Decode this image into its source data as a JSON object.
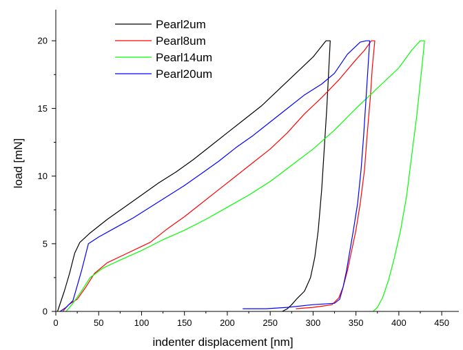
{
  "chart_data": {
    "type": "line",
    "title": "",
    "xlabel": "indenter displacement [nm]",
    "ylabel": "load [mN]",
    "xlim": [
      0,
      470
    ],
    "ylim": [
      0,
      22.3
    ],
    "xticks": [
      0,
      50,
      100,
      150,
      200,
      250,
      300,
      350,
      400,
      450
    ],
    "yticks": [
      0,
      5,
      10,
      15,
      20
    ],
    "grid": false,
    "legend_position": "top-left",
    "series": [
      {
        "name": "Pearl2um",
        "color": "#000000",
        "points": [
          [
            2,
            0
          ],
          [
            10,
            1.5
          ],
          [
            16,
            2.8
          ],
          [
            22,
            4.3
          ],
          [
            28,
            5.1
          ],
          [
            40,
            5.8
          ],
          [
            60,
            6.8
          ],
          [
            80,
            7.7
          ],
          [
            100,
            8.6
          ],
          [
            120,
            9.5
          ],
          [
            140,
            10.3
          ],
          [
            160,
            11.2
          ],
          [
            180,
            12.2
          ],
          [
            200,
            13.2
          ],
          [
            220,
            14.2
          ],
          [
            240,
            15.2
          ],
          [
            260,
            16.4
          ],
          [
            280,
            17.6
          ],
          [
            300,
            18.8
          ],
          [
            310,
            19.6
          ],
          [
            315,
            20.0
          ],
          [
            320,
            20.0
          ],
          [
            318,
            17.5
          ],
          [
            316,
            15.0
          ],
          [
            313,
            12.0
          ],
          [
            310,
            9.0
          ],
          [
            306,
            6.0
          ],
          [
            302,
            4.0
          ],
          [
            297,
            2.5
          ],
          [
            290,
            1.5
          ],
          [
            282,
            1.0
          ],
          [
            275,
            0.5
          ],
          [
            270,
            0.2
          ],
          [
            264,
            0
          ]
        ]
      },
      {
        "name": "Pearl8um",
        "color": "#ff0000",
        "points": [
          [
            8,
            0
          ],
          [
            15,
            0.5
          ],
          [
            25,
            0.9
          ],
          [
            35,
            1.8
          ],
          [
            45,
            2.8
          ],
          [
            60,
            3.6
          ],
          [
            80,
            4.2
          ],
          [
            100,
            4.8
          ],
          [
            110,
            5.1
          ],
          [
            130,
            6.1
          ],
          [
            150,
            7.0
          ],
          [
            170,
            8.0
          ],
          [
            190,
            9.0
          ],
          [
            210,
            10.0
          ],
          [
            230,
            11.0
          ],
          [
            250,
            12.0
          ],
          [
            270,
            13.2
          ],
          [
            290,
            14.6
          ],
          [
            310,
            15.8
          ],
          [
            330,
            17.1
          ],
          [
            350,
            18.6
          ],
          [
            360,
            19.3
          ],
          [
            368,
            20.0
          ],
          [
            372,
            20.0
          ],
          [
            369,
            18.0
          ],
          [
            367,
            16.0
          ],
          [
            363,
            13.0
          ],
          [
            360,
            10.5
          ],
          [
            355,
            8.0
          ],
          [
            350,
            6.0
          ],
          [
            345,
            4.5
          ],
          [
            340,
            3.0
          ],
          [
            335,
            1.8
          ],
          [
            330,
            1.0
          ],
          [
            322,
            0.5
          ],
          [
            312,
            0.4
          ],
          [
            300,
            0.3
          ],
          [
            280,
            0.2
          ]
        ]
      },
      {
        "name": "Pearl14um",
        "color": "#00ff00",
        "points": [
          [
            12,
            0
          ],
          [
            20,
            0.6
          ],
          [
            30,
            1.5
          ],
          [
            40,
            2.5
          ],
          [
            55,
            3.2
          ],
          [
            75,
            3.8
          ],
          [
            100,
            4.5
          ],
          [
            125,
            5.3
          ],
          [
            150,
            6.0
          ],
          [
            175,
            6.8
          ],
          [
            200,
            7.7
          ],
          [
            225,
            8.6
          ],
          [
            250,
            9.6
          ],
          [
            275,
            10.8
          ],
          [
            300,
            12.0
          ],
          [
            325,
            13.4
          ],
          [
            350,
            15.0
          ],
          [
            375,
            16.5
          ],
          [
            400,
            18.0
          ],
          [
            415,
            19.3
          ],
          [
            425,
            20.0
          ],
          [
            430,
            20.0
          ],
          [
            426,
            17.5
          ],
          [
            421,
            14.5
          ],
          [
            415,
            11.5
          ],
          [
            409,
            8.5
          ],
          [
            402,
            6.0
          ],
          [
            395,
            4.0
          ],
          [
            388,
            2.3
          ],
          [
            381,
            1.0
          ],
          [
            375,
            0.3
          ],
          [
            370,
            0
          ]
        ]
      },
      {
        "name": "Pearl20um",
        "color": "#0000ff",
        "points": [
          [
            5,
            0
          ],
          [
            12,
            0.3
          ],
          [
            20,
            0.8
          ],
          [
            30,
            3.0
          ],
          [
            38,
            5.0
          ],
          [
            50,
            5.5
          ],
          [
            70,
            6.2
          ],
          [
            90,
            6.9
          ],
          [
            110,
            7.7
          ],
          [
            130,
            8.5
          ],
          [
            150,
            9.3
          ],
          [
            170,
            10.2
          ],
          [
            190,
            11.1
          ],
          [
            210,
            12.1
          ],
          [
            230,
            13.0
          ],
          [
            250,
            14.0
          ],
          [
            270,
            15.0
          ],
          [
            290,
            16.0
          ],
          [
            310,
            16.8
          ],
          [
            325,
            17.6
          ],
          [
            340,
            19.0
          ],
          [
            355,
            19.9
          ],
          [
            362,
            20.0
          ],
          [
            366,
            20.0
          ],
          [
            364,
            18.0
          ],
          [
            362,
            16.0
          ],
          [
            359,
            13.0
          ],
          [
            356,
            10.5
          ],
          [
            352,
            8.0
          ],
          [
            347,
            6.0
          ],
          [
            343,
            4.5
          ],
          [
            339,
            3.0
          ],
          [
            335,
            1.8
          ],
          [
            331,
            0.9
          ],
          [
            325,
            0.6
          ],
          [
            300,
            0.5
          ],
          [
            270,
            0.3
          ],
          [
            245,
            0.2
          ],
          [
            218,
            0.2
          ]
        ]
      }
    ]
  }
}
